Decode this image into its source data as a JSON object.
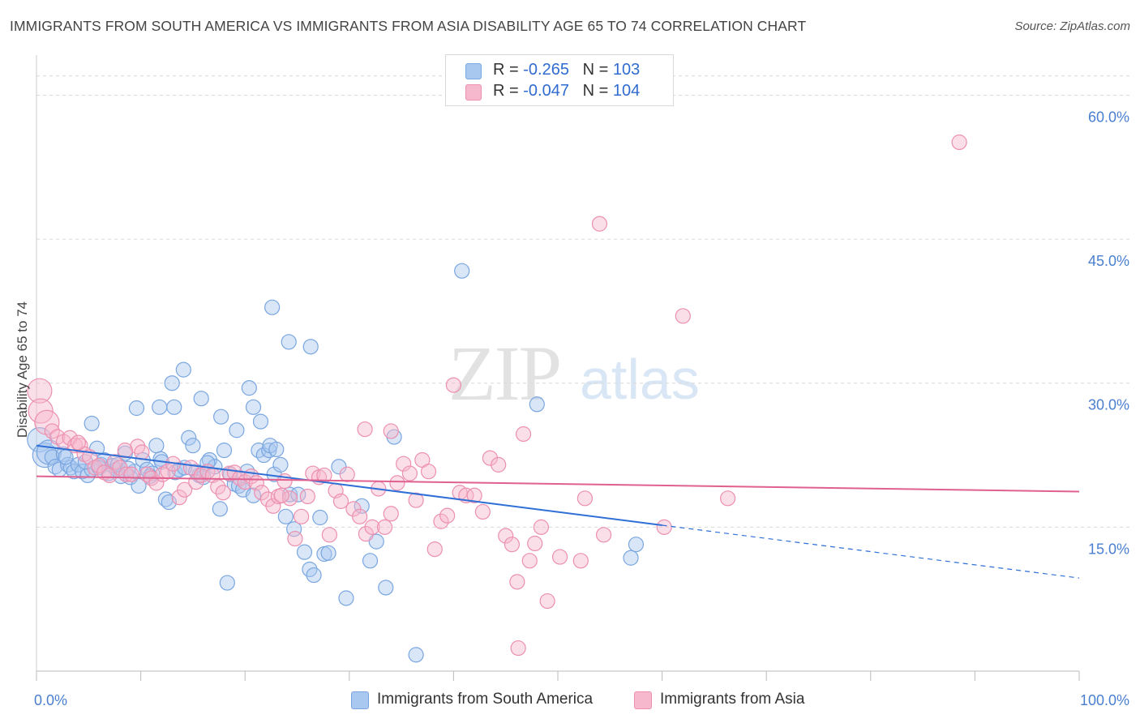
{
  "title": "IMMIGRANTS FROM SOUTH AMERICA VS IMMIGRANTS FROM ASIA DISABILITY AGE 65 TO 74 CORRELATION CHART",
  "source": "Source: ZipAtlas.com",
  "watermark": {
    "zip": "ZIP",
    "atlas": "atlas"
  },
  "legend": {
    "series1": {
      "r_label": "R = ",
      "r_value": "-0.265",
      "n_label": "N = ",
      "n_value": "103"
    },
    "series2": {
      "r_label": "R = ",
      "r_value": "-0.047",
      "n_label": "N = ",
      "n_value": "104"
    }
  },
  "colors": {
    "blue_fill": "#a9c8f0",
    "blue_stroke": "#7aa6e0",
    "blue_line": "#2f6fd6",
    "pink_fill": "#f6b8cc",
    "pink_stroke": "#ec8fb0",
    "pink_line": "#e0608f",
    "grid": "#d9d9d9",
    "tick_text": "#4a7fd0"
  },
  "chart_data": {
    "type": "scatter",
    "xlabel": "",
    "ylabel": "Disability Age 65 to 74",
    "xlim": [
      0,
      100
    ],
    "ylim": [
      0,
      63.5
    ],
    "x_tick_labels": [
      {
        "value": 0,
        "label": "0.0%"
      },
      {
        "value": 100,
        "label": "100.0%"
      }
    ],
    "y_ticks": [
      {
        "value": 15,
        "label": "15.0%"
      },
      {
        "value": 30,
        "label": "30.0%"
      },
      {
        "value": 45,
        "label": "45.0%"
      },
      {
        "value": 60,
        "label": "60.0%"
      }
    ],
    "series": [
      {
        "name": "Immigrants from South America",
        "color": "#a9c8f0",
        "trend": {
          "x0": 0,
          "y0": 23.5,
          "x_solid_end": 60,
          "y_solid_end": 15.2,
          "x1": 100,
          "y1": 9.7
        },
        "points": [
          [
            0.3,
            24.1
          ],
          [
            0.8,
            22.5
          ],
          [
            1.2,
            22.8
          ],
          [
            1.5,
            22.3
          ],
          [
            1.8,
            21.3
          ],
          [
            2.2,
            21.0
          ],
          [
            2.6,
            22.6
          ],
          [
            3.0,
            21.5
          ],
          [
            3.3,
            21.2
          ],
          [
            3.6,
            20.8
          ],
          [
            4.0,
            21.5
          ],
          [
            4.4,
            20.8
          ],
          [
            4.9,
            20.4
          ],
          [
            5.3,
            21.0
          ],
          [
            5.8,
            23.2
          ],
          [
            6.2,
            21.5
          ],
          [
            6.5,
            22.0
          ],
          [
            6.9,
            20.6
          ],
          [
            7.3,
            21.4
          ],
          [
            7.7,
            21.0
          ],
          [
            8.1,
            20.3
          ],
          [
            8.5,
            22.7
          ],
          [
            9.0,
            20.2
          ],
          [
            9.4,
            20.8
          ],
          [
            9.8,
            19.3
          ],
          [
            10.2,
            22.0
          ],
          [
            10.6,
            21.0
          ],
          [
            11.1,
            20.6
          ],
          [
            11.5,
            23.5
          ],
          [
            11.9,
            22.1
          ],
          [
            12.4,
            17.9
          ],
          [
            12.7,
            17.6
          ],
          [
            13.3,
            20.7
          ],
          [
            13.7,
            21.0
          ],
          [
            14.2,
            21.2
          ],
          [
            14.6,
            24.3
          ],
          [
            15.0,
            23.5
          ],
          [
            15.6,
            20.4
          ],
          [
            16.0,
            20.2
          ],
          [
            16.6,
            22.0
          ],
          [
            17.1,
            21.3
          ],
          [
            17.6,
            16.9
          ],
          [
            18.0,
            23.0
          ],
          [
            18.6,
            20.5
          ],
          [
            19.0,
            19.5
          ],
          [
            19.4,
            19.3
          ],
          [
            19.8,
            18.9
          ],
          [
            20.2,
            20.8
          ],
          [
            20.8,
            18.3
          ],
          [
            21.3,
            23.0
          ],
          [
            21.8,
            22.5
          ],
          [
            22.3,
            23.0
          ],
          [
            22.8,
            20.5
          ],
          [
            23.4,
            21.5
          ],
          [
            23.9,
            16.1
          ],
          [
            24.3,
            18.4
          ],
          [
            24.7,
            14.8
          ],
          [
            25.1,
            18.4
          ],
          [
            25.7,
            12.4
          ],
          [
            26.2,
            10.6
          ],
          [
            26.6,
            10.0
          ],
          [
            27.2,
            16.0
          ],
          [
            27.6,
            12.2
          ],
          [
            28.0,
            12.3
          ],
          [
            29.0,
            21.3
          ],
          [
            29.7,
            7.6
          ],
          [
            31.2,
            17.2
          ],
          [
            32.0,
            11.5
          ],
          [
            32.6,
            13.5
          ],
          [
            33.5,
            8.7
          ],
          [
            34.3,
            24.4
          ],
          [
            36.4,
            1.7
          ],
          [
            5.3,
            25.8
          ],
          [
            9.6,
            27.4
          ],
          [
            13.2,
            27.5
          ],
          [
            14.1,
            31.4
          ],
          [
            13.0,
            30.0
          ],
          [
            15.8,
            28.4
          ],
          [
            17.7,
            26.5
          ],
          [
            19.2,
            25.1
          ],
          [
            20.4,
            29.5
          ],
          [
            20.8,
            27.5
          ],
          [
            21.5,
            26.0
          ],
          [
            22.4,
            23.5
          ],
          [
            23.0,
            23.1
          ],
          [
            11.8,
            27.5
          ],
          [
            22.6,
            37.9
          ],
          [
            24.2,
            34.3
          ],
          [
            26.3,
            33.8
          ],
          [
            40.8,
            41.7
          ],
          [
            48.0,
            27.8
          ],
          [
            57.5,
            13.2
          ],
          [
            57.0,
            11.8
          ],
          [
            18.3,
            9.2
          ],
          [
            6.0,
            21.2
          ],
          [
            7.8,
            21.5
          ],
          [
            2.8,
            22.3
          ],
          [
            4.7,
            21.8
          ],
          [
            8.8,
            21.1
          ],
          [
            10.9,
            20.3
          ],
          [
            12.0,
            21.8
          ],
          [
            15.3,
            20.8
          ],
          [
            16.4,
            21.7
          ]
        ]
      },
      {
        "name": "Immigrants from Asia",
        "color": "#f6b8cc",
        "trend": {
          "x0": 0,
          "y0": 20.3,
          "x1": 100,
          "y1": 18.7
        },
        "points": [
          [
            0.3,
            29.2
          ],
          [
            0.4,
            27.1
          ],
          [
            1.0,
            25.9
          ],
          [
            1.5,
            25.0
          ],
          [
            2.0,
            24.4
          ],
          [
            2.6,
            23.9
          ],
          [
            3.2,
            24.3
          ],
          [
            3.7,
            23.5
          ],
          [
            4.2,
            23.5
          ],
          [
            4.6,
            22.6
          ],
          [
            5.1,
            22.3
          ],
          [
            5.6,
            21.2
          ],
          [
            6.0,
            21.4
          ],
          [
            6.5,
            20.7
          ],
          [
            7.0,
            20.4
          ],
          [
            7.5,
            21.8
          ],
          [
            8.0,
            21.2
          ],
          [
            8.6,
            20.5
          ],
          [
            9.1,
            20.5
          ],
          [
            9.7,
            23.4
          ],
          [
            10.1,
            22.8
          ],
          [
            10.6,
            20.5
          ],
          [
            11.0,
            20.1
          ],
          [
            11.5,
            19.6
          ],
          [
            12.1,
            20.5
          ],
          [
            12.6,
            20.8
          ],
          [
            13.1,
            21.6
          ],
          [
            13.7,
            18.1
          ],
          [
            14.2,
            18.9
          ],
          [
            14.8,
            21.2
          ],
          [
            15.3,
            19.7
          ],
          [
            15.8,
            20.4
          ],
          [
            16.4,
            20.8
          ],
          [
            16.9,
            20.4
          ],
          [
            17.4,
            19.2
          ],
          [
            17.9,
            18.6
          ],
          [
            18.5,
            20.6
          ],
          [
            19.0,
            20.7
          ],
          [
            19.5,
            20.1
          ],
          [
            20.0,
            19.7
          ],
          [
            20.6,
            20.3
          ],
          [
            21.1,
            19.6
          ],
          [
            21.6,
            18.6
          ],
          [
            22.2,
            17.9
          ],
          [
            22.7,
            17.2
          ],
          [
            23.2,
            18.2
          ],
          [
            23.8,
            19.8
          ],
          [
            24.3,
            18.0
          ],
          [
            24.8,
            13.8
          ],
          [
            25.4,
            16.1
          ],
          [
            26.0,
            18.2
          ],
          [
            26.5,
            20.6
          ],
          [
            27.1,
            20.2
          ],
          [
            27.6,
            20.4
          ],
          [
            28.1,
            14.2
          ],
          [
            28.7,
            18.8
          ],
          [
            29.2,
            17.7
          ],
          [
            29.8,
            20.5
          ],
          [
            30.4,
            16.9
          ],
          [
            31.0,
            16.1
          ],
          [
            31.6,
            14.3
          ],
          [
            32.2,
            15.0
          ],
          [
            32.8,
            19.0
          ],
          [
            33.4,
            15.0
          ],
          [
            34.0,
            16.4
          ],
          [
            34.6,
            19.6
          ],
          [
            35.2,
            21.6
          ],
          [
            35.8,
            20.6
          ],
          [
            36.4,
            17.8
          ],
          [
            37.0,
            22.0
          ],
          [
            37.6,
            20.8
          ],
          [
            38.2,
            12.7
          ],
          [
            38.8,
            15.6
          ],
          [
            39.4,
            16.2
          ],
          [
            40.0,
            29.8
          ],
          [
            40.6,
            18.6
          ],
          [
            41.2,
            18.3
          ],
          [
            42.0,
            18.3
          ],
          [
            42.8,
            16.6
          ],
          [
            43.5,
            22.2
          ],
          [
            44.3,
            21.5
          ],
          [
            45.0,
            14.1
          ],
          [
            45.6,
            13.2
          ],
          [
            46.1,
            9.3
          ],
          [
            46.7,
            24.7
          ],
          [
            47.3,
            11.5
          ],
          [
            47.8,
            13.3
          ],
          [
            48.4,
            15.0
          ],
          [
            49.0,
            7.3
          ],
          [
            50.2,
            11.9
          ],
          [
            52.2,
            11.5
          ],
          [
            52.6,
            18.0
          ],
          [
            54.0,
            46.6
          ],
          [
            54.4,
            14.2
          ],
          [
            62.0,
            37.0
          ],
          [
            60.2,
            15.0
          ],
          [
            66.3,
            18.0
          ],
          [
            88.5,
            55.1
          ],
          [
            46.2,
            2.4
          ],
          [
            34.0,
            25.0
          ],
          [
            31.5,
            25.2
          ],
          [
            23.5,
            18.3
          ],
          [
            4.0,
            23.8
          ],
          [
            8.5,
            23.0
          ]
        ]
      }
    ]
  }
}
